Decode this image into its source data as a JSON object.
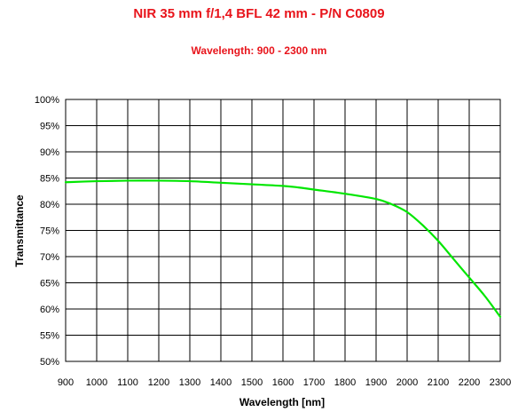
{
  "title": "NIR 35 mm f/1,4 BFL 42 mm - P/N C0809",
  "subtitle": "Wavelength: 900 - 2300 nm",
  "colors": {
    "title": "#e8141b",
    "series": "#00e600",
    "grid": "#000000"
  },
  "chart_data": {
    "type": "line",
    "title": "NIR 35 mm f/1,4 BFL 42 mm - P/N C0809",
    "subtitle": "Wavelength: 900 - 2300 nm",
    "xlabel": "Wavelength [nm]",
    "ylabel": "Transmittance",
    "xlim": [
      900,
      2300
    ],
    "ylim": [
      50,
      100
    ],
    "grid": true,
    "legend": "none",
    "x_ticks": [
      "900",
      "1000",
      "1100",
      "1200",
      "1300",
      "1400",
      "1500",
      "1600",
      "1700",
      "1800",
      "1900",
      "2000",
      "2100",
      "2200",
      "2300"
    ],
    "y_ticks": [
      "50%",
      "55%",
      "60%",
      "65%",
      "70%",
      "75%",
      "80%",
      "85%",
      "90%",
      "95%",
      "100%"
    ],
    "series": [
      {
        "x": [
          900,
          1000,
          1100,
          1200,
          1300,
          1400,
          1500,
          1600,
          1650,
          1700,
          1800,
          1900,
          1950,
          2000,
          2050,
          2100,
          2150,
          2200,
          2250,
          2300
        ],
        "y": [
          84.2,
          84.4,
          84.5,
          84.5,
          84.4,
          84.1,
          83.8,
          83.5,
          83.2,
          82.8,
          82.0,
          81.0,
          80.0,
          78.5,
          76.0,
          73.0,
          69.5,
          66.0,
          62.5,
          58.5
        ]
      }
    ]
  }
}
